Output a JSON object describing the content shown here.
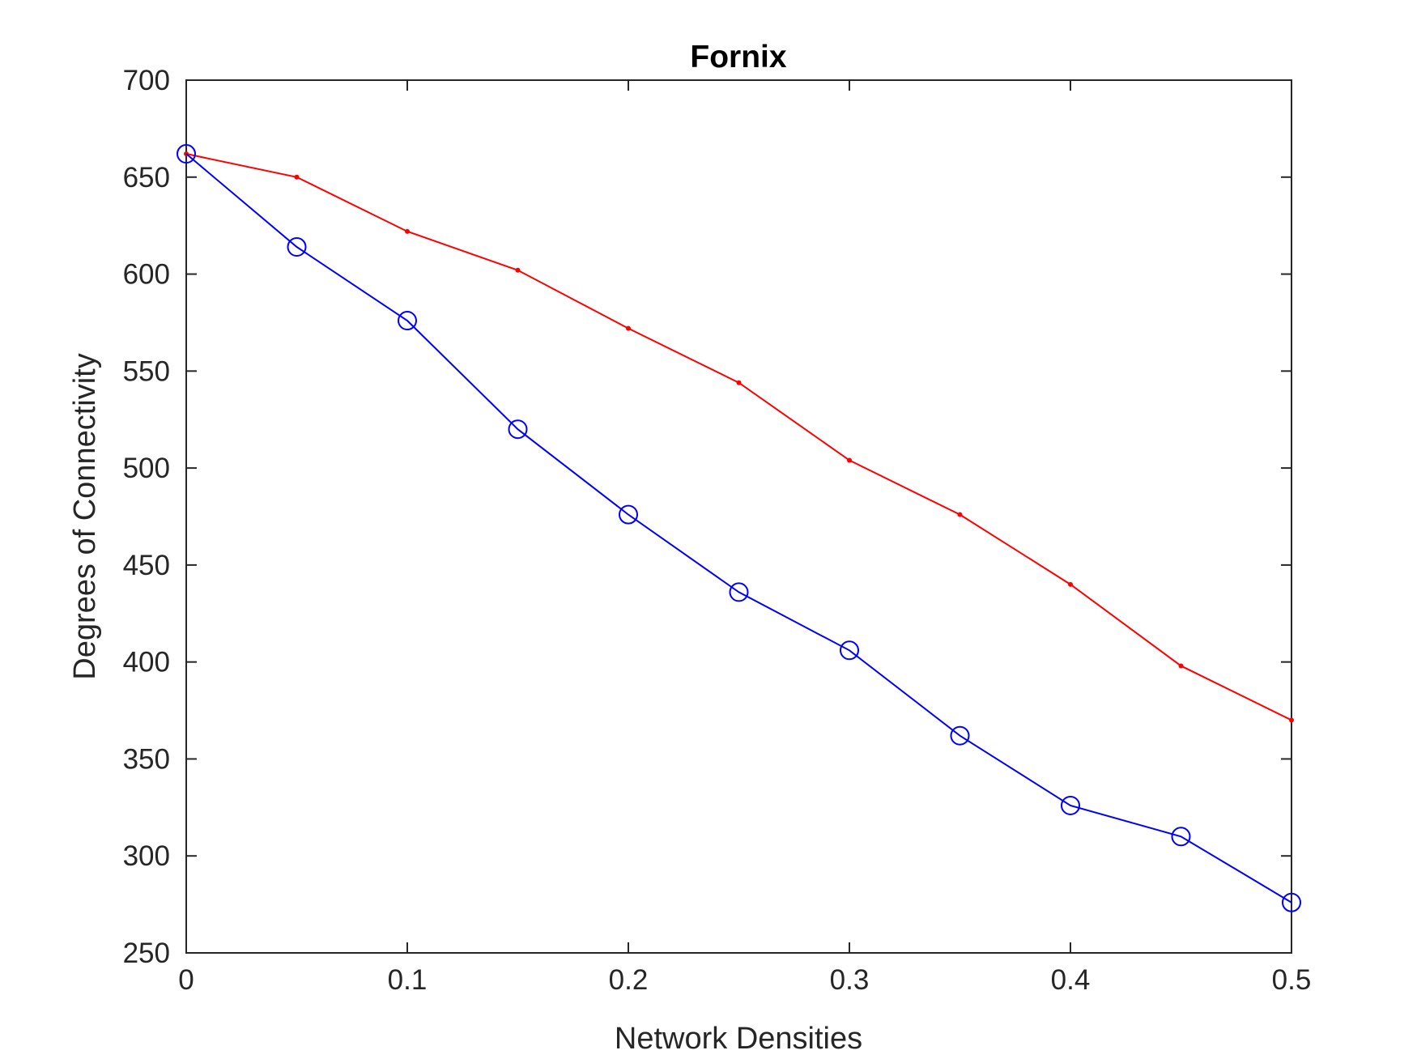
{
  "chart_data": {
    "type": "line",
    "title": "Fornix",
    "xlabel": "Network Densities",
    "ylabel": "Degrees of Connectivity",
    "xlim": [
      0,
      0.5
    ],
    "ylim": [
      250,
      700
    ],
    "xticks": [
      0,
      0.1,
      0.2,
      0.3,
      0.4,
      0.5
    ],
    "xtick_labels": [
      "0",
      "0.1",
      "0.2",
      "0.3",
      "0.4",
      "0.5"
    ],
    "yticks": [
      250,
      300,
      350,
      400,
      450,
      500,
      550,
      600,
      650,
      700
    ],
    "ytick_labels": [
      "250",
      "300",
      "350",
      "400",
      "450",
      "500",
      "550",
      "600",
      "650",
      "700"
    ],
    "x": [
      0,
      0.05,
      0.1,
      0.15,
      0.2,
      0.25,
      0.3,
      0.35,
      0.4,
      0.45,
      0.5
    ],
    "grid": false,
    "legend": "none",
    "series": [
      {
        "color": "#ff0000",
        "marker": "dot",
        "values": [
          662,
          650,
          622,
          602,
          572,
          544,
          504,
          476,
          440,
          398,
          370
        ]
      },
      {
        "color": "#0000ff",
        "marker": "circle",
        "values": [
          662,
          614,
          576,
          520,
          476,
          436,
          406,
          362,
          326,
          310,
          276
        ]
      }
    ]
  }
}
